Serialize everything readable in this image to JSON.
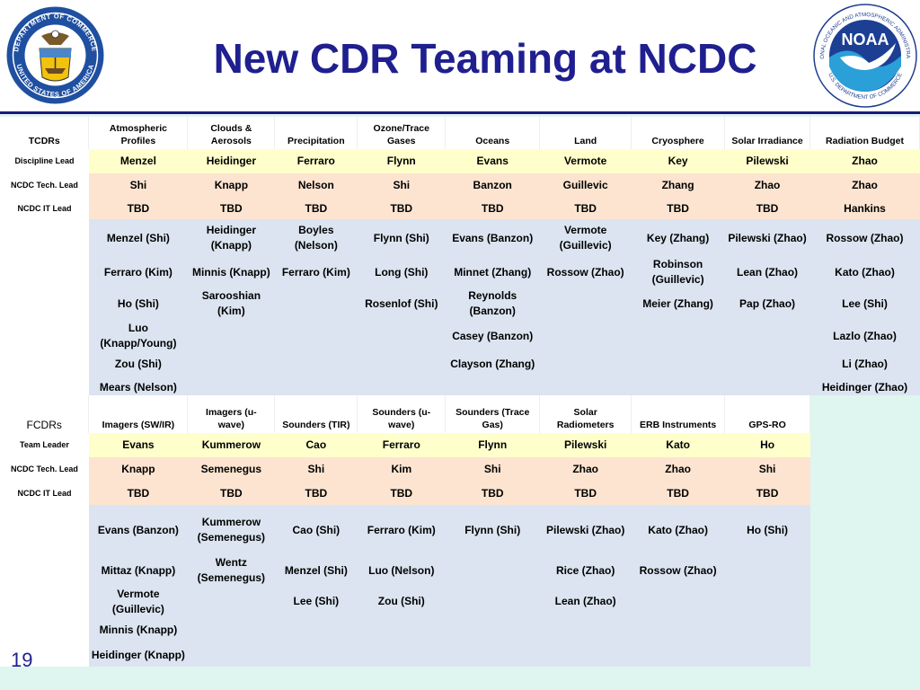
{
  "title": "New CDR Teaming at NCDC",
  "page_number": "19",
  "logos": {
    "doc": {
      "text_top": "DEPARTMENT OF COMMERCE",
      "text_bottom": "UNITED STATES OF AMERICA"
    },
    "noaa": {
      "center": "NOAA",
      "ring_top": "NATIONAL OCEANIC AND ATMOSPHERIC ADMINISTRATION",
      "ring_bottom": "U.S. DEPARTMENT OF COMMERCE"
    }
  },
  "colors": {
    "title": "#1f1f8f",
    "lead_row": "#ffffcc",
    "tech_row": "#fce4d0",
    "member_row": "#dbe4f0",
    "background": "#dff5ef"
  },
  "tcdr": {
    "corner": "TCDRs",
    "columns": [
      "Atmospheric\nProfiles",
      "Clouds &\nAerosols",
      "Precipitation",
      "Ozone/Trace\nGases",
      "Oceans",
      "Land",
      "Cryosphere",
      "Solar Irradiance",
      "Radiation Budget"
    ],
    "leads": [
      {
        "label": "Discipline Lead",
        "values": [
          "Menzel",
          "Heidinger",
          "Ferraro",
          "Flynn",
          "Evans",
          "Vermote",
          "Key",
          "Pilewski",
          "Zhao"
        ]
      },
      {
        "label": "NCDC Tech. Lead",
        "values": [
          "Shi",
          "Knapp",
          "Nelson",
          "Shi",
          "Banzon",
          "Guillevic",
          "Zhang",
          "Zhao",
          "Zhao"
        ]
      },
      {
        "label": "NCDC IT Lead",
        "values": [
          "TBD",
          "TBD",
          "TBD",
          "TBD",
          "TBD",
          "TBD",
          "TBD",
          "TBD",
          "Hankins"
        ]
      }
    ],
    "members": [
      [
        "Menzel (Shi)",
        "Heidinger\n(Knapp)",
        "Boyles\n(Nelson)",
        "Flynn (Shi)",
        "Evans (Banzon)",
        "Vermote\n(Guillevic)",
        "Key (Zhang)",
        "Pilewski (Zhao)",
        "Rossow (Zhao)"
      ],
      [
        "Ferraro (Kim)",
        "Minnis (Knapp)",
        "Ferraro (Kim)",
        "Long (Shi)",
        "Minnet (Zhang)",
        "Rossow (Zhao)",
        "Robinson\n(Guillevic)",
        "Lean (Zhao)",
        "Kato (Zhao)"
      ],
      [
        "Ho (Shi)",
        "Sarooshian\n(Kim)",
        "",
        "Rosenlof (Shi)",
        "Reynolds\n(Banzon)",
        "",
        "Meier (Zhang)",
        "Pap (Zhao)",
        "Lee (Shi)"
      ],
      [
        "Luo\n(Knapp/Young)",
        "",
        "",
        "",
        "Casey (Banzon)",
        "",
        "",
        "",
        "Lazlo (Zhao)"
      ],
      [
        "Zou (Shi)",
        "",
        "",
        "",
        "Clayson (Zhang)",
        "",
        "",
        "",
        "Li (Zhao)"
      ],
      [
        "Mears (Nelson)",
        "",
        "",
        "",
        "",
        "",
        "",
        "",
        "Heidinger (Zhao)"
      ]
    ]
  },
  "fcdr": {
    "corner": "FCDRs",
    "columns": [
      "Imagers (SW/IR)",
      "Imagers (u-\nwave)",
      "Sounders (TIR)",
      "Sounders (u-\nwave)",
      "Sounders (Trace\nGas)",
      "Solar\nRadiometers",
      "ERB Instruments",
      "GPS-RO"
    ],
    "leads": [
      {
        "label": "Team Leader",
        "values": [
          "Evans",
          "Kummerow",
          "Cao",
          "Ferraro",
          "Flynn",
          "Pilewski",
          "Kato",
          "Ho"
        ]
      },
      {
        "label": "NCDC Tech. Lead",
        "values": [
          "Knapp",
          "Semenegus",
          "Shi",
          "Kim",
          "Shi",
          "Zhao",
          "Zhao",
          "Shi"
        ]
      },
      {
        "label": "NCDC IT Lead",
        "values": [
          "TBD",
          "TBD",
          "TBD",
          "TBD",
          "TBD",
          "TBD",
          "TBD",
          "TBD"
        ]
      }
    ],
    "members": [
      [
        "Evans (Banzon)",
        "Kummerow\n(Semenegus)",
        "Cao (Shi)",
        "Ferraro (Kim)",
        "Flynn (Shi)",
        "Pilewski (Zhao)",
        "Kato (Zhao)",
        "Ho (Shi)"
      ],
      [
        "Mittaz (Knapp)",
        "Wentz\n(Semenegus)",
        "Menzel (Shi)",
        "Luo (Nelson)",
        "",
        "Rice (Zhao)",
        "Rossow (Zhao)",
        ""
      ],
      [
        "Vermote\n(Guillevic)",
        "",
        "Lee (Shi)",
        "Zou (Shi)",
        "",
        "Lean (Zhao)",
        "",
        ""
      ],
      [
        "Minnis (Knapp)",
        "",
        "",
        "",
        "",
        "",
        "",
        ""
      ],
      [
        "Heidinger (Knapp)",
        "",
        "",
        "",
        "",
        "",
        "",
        ""
      ]
    ]
  }
}
